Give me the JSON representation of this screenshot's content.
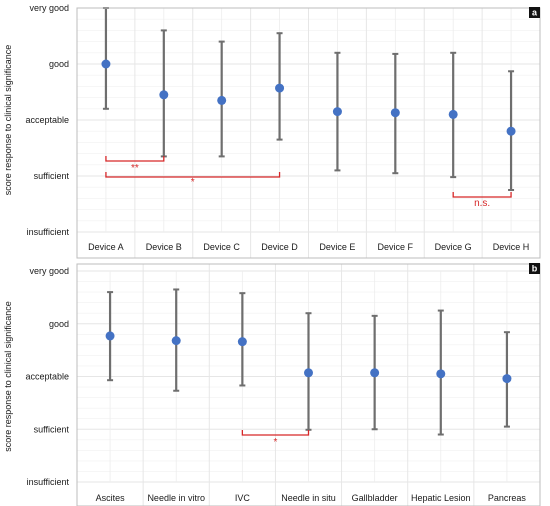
{
  "chart_data": [
    {
      "type": "scatter",
      "panel_label": "a",
      "ylabel": "score response to clinical significance",
      "y_levels": [
        "insufficient",
        "sufficient",
        "acceptable",
        "good",
        "very good"
      ],
      "ylim": [
        1,
        5
      ],
      "categories": [
        "Device A",
        "Device B",
        "Device C",
        "Device D",
        "Device E",
        "Device F",
        "Device G",
        "Device H"
      ],
      "series": [
        {
          "values": [
            4.0,
            3.45,
            3.35,
            3.57,
            3.15,
            3.13,
            3.1,
            2.8
          ],
          "error_low": [
            3.2,
            2.35,
            2.35,
            2.65,
            2.1,
            2.05,
            1.98,
            1.75
          ],
          "error_high": [
            5.0,
            4.6,
            4.4,
            4.55,
            4.2,
            4.18,
            4.2,
            3.87
          ]
        }
      ],
      "significance": [
        {
          "from": "Device A",
          "to": "Device B",
          "label": "**"
        },
        {
          "from": "Device A",
          "to": "Device D",
          "label": "*"
        },
        {
          "from": "Device G",
          "to": "Device H",
          "label": "n.s."
        }
      ],
      "grid": true,
      "colors": {
        "point": "#4472c4",
        "errorbar": "#6e6e6e",
        "significance": "#d62728",
        "grid": "#e6e6e6",
        "panel_label_bg": "#111111"
      }
    },
    {
      "type": "scatter",
      "panel_label": "b",
      "ylabel": "score response to clinical significance",
      "y_levels": [
        "insufficient",
        "sufficient",
        "acceptable",
        "good",
        "very good"
      ],
      "ylim": [
        1,
        5
      ],
      "categories": [
        "Ascites",
        "Needle in vitro",
        "IVC",
        "Needle in situ",
        "Gallbladder",
        "Hepatic Lesion",
        "Pancreas"
      ],
      "series": [
        {
          "values": [
            3.77,
            3.68,
            3.66,
            3.07,
            3.07,
            3.05,
            2.96
          ],
          "error_low": [
            2.93,
            2.73,
            2.83,
            1.99,
            2.0,
            1.9,
            2.05
          ],
          "error_high": [
            4.6,
            4.65,
            4.58,
            4.2,
            4.15,
            4.25,
            3.84
          ]
        }
      ],
      "significance": [
        {
          "from": "IVC",
          "to": "Needle in situ",
          "label": "*"
        }
      ],
      "grid": true,
      "colors": {
        "point": "#4472c4",
        "errorbar": "#6e6e6e",
        "significance": "#d62728",
        "grid": "#e6e6e6",
        "panel_label_bg": "#111111"
      }
    }
  ]
}
